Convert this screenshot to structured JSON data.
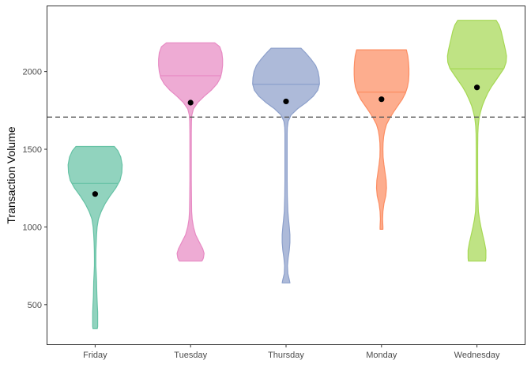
{
  "chart_data": {
    "type": "violin",
    "title": "",
    "xlabel": "",
    "ylabel": "Transaction Volume",
    "ylim": [
      245,
      2420
    ],
    "yticks": [
      500,
      1000,
      1500,
      2000
    ],
    "categories": [
      "Friday",
      "Tuesday",
      "Thursday",
      "Monday",
      "Wednesday"
    ],
    "reference_line": {
      "y": 1707,
      "style": "dashed",
      "color": "#595959"
    },
    "grid": false,
    "legend": "none",
    "series": [
      {
        "category": "Friday",
        "color": "#66C2A5",
        "min": 345,
        "max": 1518,
        "median": 1280,
        "mean": 1212,
        "density_profile": [
          [
            1518,
            0.54
          ],
          [
            1490,
            0.64
          ],
          [
            1450,
            0.72
          ],
          [
            1400,
            0.76
          ],
          [
            1350,
            0.75
          ],
          [
            1300,
            0.7
          ],
          [
            1250,
            0.58
          ],
          [
            1200,
            0.42
          ],
          [
            1150,
            0.28
          ],
          [
            1100,
            0.17
          ],
          [
            1050,
            0.09
          ],
          [
            1000,
            0.055
          ],
          [
            950,
            0.04
          ],
          [
            900,
            0.03
          ],
          [
            850,
            0.022
          ],
          [
            800,
            0.02
          ],
          [
            750,
            0.02
          ],
          [
            700,
            0.03
          ],
          [
            650,
            0.04
          ],
          [
            600,
            0.045
          ],
          [
            550,
            0.05
          ],
          [
            500,
            0.06
          ],
          [
            450,
            0.07
          ],
          [
            400,
            0.07
          ],
          [
            360,
            0.07
          ],
          [
            345,
            0.06
          ]
        ]
      },
      {
        "category": "Tuesday",
        "color": "#E78AC3",
        "min": 780,
        "max": 2185,
        "median": 1973,
        "mean": 1800,
        "density_profile": [
          [
            2185,
            0.68
          ],
          [
            2160,
            0.82
          ],
          [
            2120,
            0.88
          ],
          [
            2080,
            0.9
          ],
          [
            2040,
            0.9
          ],
          [
            2000,
            0.88
          ],
          [
            1960,
            0.84
          ],
          [
            1920,
            0.74
          ],
          [
            1880,
            0.58
          ],
          [
            1840,
            0.38
          ],
          [
            1800,
            0.2
          ],
          [
            1760,
            0.08
          ],
          [
            1720,
            0.035
          ],
          [
            1680,
            0.025
          ],
          [
            1600,
            0.02
          ],
          [
            1500,
            0.02
          ],
          [
            1400,
            0.02
          ],
          [
            1300,
            0.02
          ],
          [
            1200,
            0.025
          ],
          [
            1100,
            0.03
          ],
          [
            1050,
            0.045
          ],
          [
            1000,
            0.08
          ],
          [
            950,
            0.14
          ],
          [
            900,
            0.25
          ],
          [
            860,
            0.34
          ],
          [
            830,
            0.38
          ],
          [
            800,
            0.36
          ],
          [
            785,
            0.33
          ],
          [
            780,
            0.31
          ]
        ]
      },
      {
        "category": "Thursday",
        "color": "#8DA0CB",
        "min": 640,
        "max": 2150,
        "median": 1918,
        "mean": 1808,
        "density_profile": [
          [
            2150,
            0.42
          ],
          [
            2120,
            0.55
          ],
          [
            2080,
            0.7
          ],
          [
            2040,
            0.83
          ],
          [
            2000,
            0.9
          ],
          [
            1960,
            0.93
          ],
          [
            1920,
            0.94
          ],
          [
            1880,
            0.89
          ],
          [
            1840,
            0.76
          ],
          [
            1800,
            0.56
          ],
          [
            1760,
            0.32
          ],
          [
            1720,
            0.14
          ],
          [
            1680,
            0.06
          ],
          [
            1640,
            0.035
          ],
          [
            1600,
            0.03
          ],
          [
            1500,
            0.03
          ],
          [
            1400,
            0.03
          ],
          [
            1300,
            0.03
          ],
          [
            1200,
            0.035
          ],
          [
            1100,
            0.05
          ],
          [
            1050,
            0.07
          ],
          [
            1000,
            0.09
          ],
          [
            950,
            0.11
          ],
          [
            900,
            0.11
          ],
          [
            850,
            0.09
          ],
          [
            800,
            0.06
          ],
          [
            750,
            0.04
          ],
          [
            700,
            0.05
          ],
          [
            660,
            0.09
          ],
          [
            640,
            0.11
          ]
        ]
      },
      {
        "category": "Monday",
        "color": "#FC8D62",
        "min": 985,
        "max": 2140,
        "median": 1868,
        "mean": 1822,
        "density_profile": [
          [
            2140,
            0.7
          ],
          [
            2100,
            0.74
          ],
          [
            2060,
            0.76
          ],
          [
            2020,
            0.77
          ],
          [
            1980,
            0.77
          ],
          [
            1940,
            0.76
          ],
          [
            1900,
            0.73
          ],
          [
            1860,
            0.67
          ],
          [
            1820,
            0.58
          ],
          [
            1780,
            0.46
          ],
          [
            1740,
            0.34
          ],
          [
            1700,
            0.23
          ],
          [
            1660,
            0.14
          ],
          [
            1620,
            0.09
          ],
          [
            1580,
            0.06
          ],
          [
            1540,
            0.045
          ],
          [
            1500,
            0.04
          ],
          [
            1450,
            0.045
          ],
          [
            1400,
            0.07
          ],
          [
            1350,
            0.1
          ],
          [
            1300,
            0.13
          ],
          [
            1250,
            0.14
          ],
          [
            1200,
            0.12
          ],
          [
            1150,
            0.07
          ],
          [
            1100,
            0.04
          ],
          [
            1050,
            0.03
          ],
          [
            1000,
            0.04
          ],
          [
            985,
            0.04
          ]
        ]
      },
      {
        "category": "Wednesday",
        "color": "#A6D854",
        "min": 780,
        "max": 2330,
        "median": 2018,
        "mean": 1898,
        "density_profile": [
          [
            2330,
            0.54
          ],
          [
            2300,
            0.62
          ],
          [
            2260,
            0.68
          ],
          [
            2220,
            0.72
          ],
          [
            2180,
            0.76
          ],
          [
            2140,
            0.8
          ],
          [
            2100,
            0.83
          ],
          [
            2060,
            0.82
          ],
          [
            2020,
            0.76
          ],
          [
            1980,
            0.64
          ],
          [
            1940,
            0.52
          ],
          [
            1900,
            0.4
          ],
          [
            1860,
            0.3
          ],
          [
            1820,
            0.22
          ],
          [
            1780,
            0.15
          ],
          [
            1740,
            0.1
          ],
          [
            1700,
            0.06
          ],
          [
            1650,
            0.035
          ],
          [
            1600,
            0.025
          ],
          [
            1500,
            0.02
          ],
          [
            1400,
            0.02
          ],
          [
            1300,
            0.02
          ],
          [
            1200,
            0.025
          ],
          [
            1100,
            0.04
          ],
          [
            1050,
            0.07
          ],
          [
            1000,
            0.11
          ],
          [
            950,
            0.16
          ],
          [
            900,
            0.21
          ],
          [
            850,
            0.25
          ],
          [
            800,
            0.25
          ],
          [
            780,
            0.24
          ]
        ]
      }
    ]
  }
}
